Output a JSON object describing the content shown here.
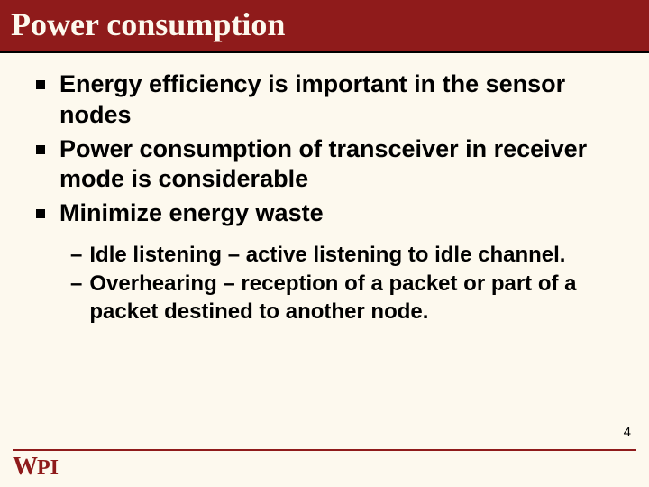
{
  "title": "Power consumption",
  "bullets": [
    {
      "text": "Energy efficiency is important in the sensor nodes"
    },
    {
      "text": "Power consumption of transceiver in receiver mode is considerable"
    },
    {
      "text": "Minimize energy waste"
    }
  ],
  "sub_bullets": [
    {
      "text": "Idle listening – active listening to idle channel."
    },
    {
      "text": "Overhearing – reception of a packet or part of a packet destined to another node."
    }
  ],
  "page_number": "4",
  "logo": {
    "w": "W",
    "pi": "PI"
  },
  "colors": {
    "header_bg": "#8f1b1b",
    "header_border": "#000000",
    "slide_bg": "#fdf9ee",
    "title_text": "#fdf9ee",
    "body_text": "#000000",
    "rule": "#8f1b1b",
    "logo": "#8f1b1b"
  },
  "fontsizes": {
    "title": 36,
    "bullet": 27,
    "sub_bullet": 24,
    "page_number": 15
  }
}
